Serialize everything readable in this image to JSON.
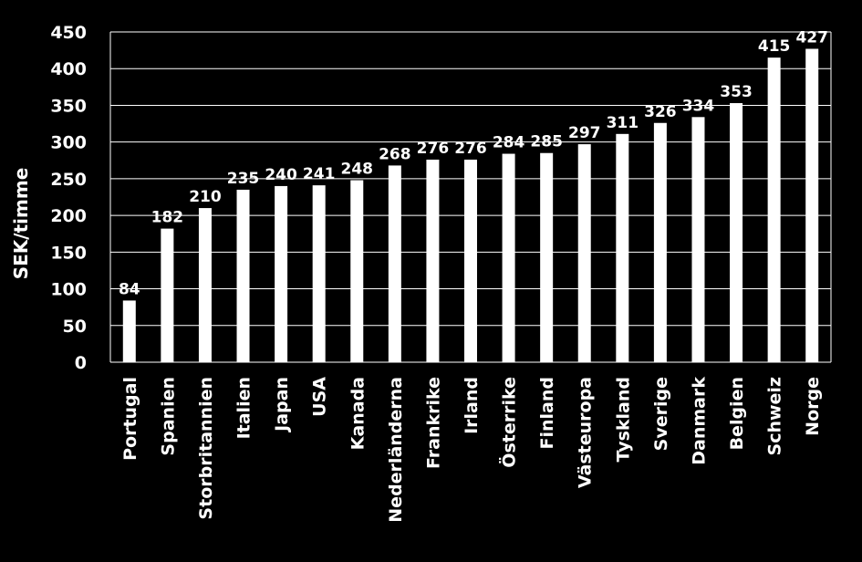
{
  "chart_data": {
    "type": "bar",
    "ylabel": "SEK/timme",
    "ylim": [
      0,
      450
    ],
    "yticks": [
      0,
      50,
      100,
      150,
      200,
      250,
      300,
      350,
      400,
      450
    ],
    "grid": true,
    "categories": [
      "Portugal",
      "Spanien",
      "Storbritannien",
      "Italien",
      "Japan",
      "USA",
      "Kanada",
      "Nederländerna",
      "Frankrike",
      "Irland",
      "Österrike",
      "Finland",
      "Västeuropa",
      "Tyskland",
      "Sverige",
      "Danmark",
      "Belgien",
      "Schweiz",
      "Norge"
    ],
    "values": [
      84,
      182,
      210,
      235,
      240,
      241,
      248,
      268,
      276,
      276,
      284,
      285,
      297,
      311,
      326,
      334,
      353,
      415,
      427
    ],
    "colors": {
      "background": "#000000",
      "bar": "#ffffff",
      "text": "#ffffff",
      "grid": "#ffffff"
    }
  }
}
